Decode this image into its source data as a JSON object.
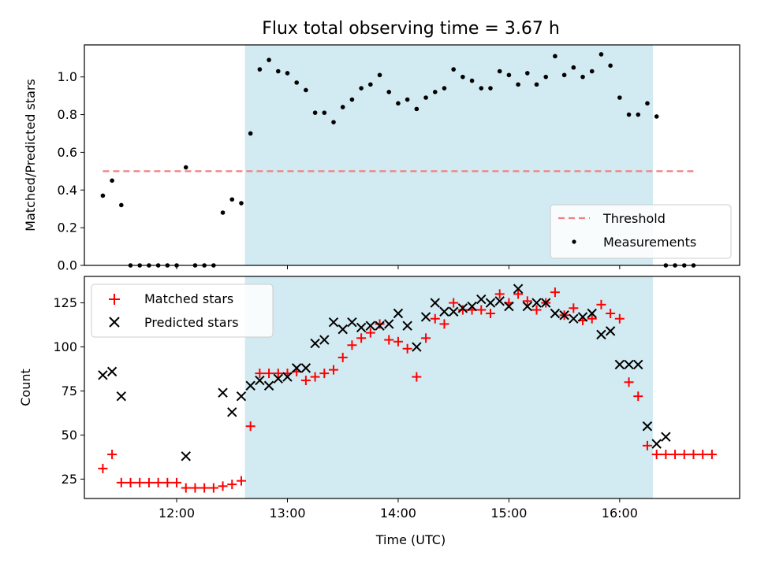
{
  "chart_data": [
    {
      "type": "scatter",
      "title": "Flux total observing time = 3.67 h",
      "xlabel": "",
      "ylabel": "Matched/Predicted stars",
      "ylim": [
        0,
        1.17
      ],
      "yticks": [
        "0.0",
        "0.2",
        "0.4",
        "0.6",
        "0.8",
        "1.0"
      ],
      "x_range": [
        "11:10",
        "17:05"
      ],
      "observing_window": [
        "12:37",
        "16:18"
      ],
      "window_color": "#d2eaf1",
      "legend": "lower right",
      "threshold": {
        "name": "Threshold",
        "value": 0.5,
        "x": [
          "11:20",
          "16:40"
        ],
        "color": "#f08080",
        "style": "dashed"
      },
      "series": [
        {
          "name": "Measurements",
          "color": "#000000",
          "marker": "dot",
          "points": [
            [
              "11:20",
              0.37
            ],
            [
              "11:25",
              0.45
            ],
            [
              "11:30",
              0.32
            ],
            [
              "11:35",
              0.0
            ],
            [
              "11:40",
              0.0
            ],
            [
              "11:45",
              0.0
            ],
            [
              "11:50",
              0.0
            ],
            [
              "11:55",
              0.0
            ],
            [
              "12:00",
              0.0
            ],
            [
              "12:05",
              0.52
            ],
            [
              "12:10",
              0.0
            ],
            [
              "12:15",
              0.0
            ],
            [
              "12:20",
              0.0
            ],
            [
              "12:25",
              0.28
            ],
            [
              "12:30",
              0.35
            ],
            [
              "12:35",
              0.33
            ],
            [
              "12:40",
              0.7
            ],
            [
              "12:45",
              1.04
            ],
            [
              "12:50",
              1.09
            ],
            [
              "12:55",
              1.03
            ],
            [
              "13:00",
              1.02
            ],
            [
              "13:05",
              0.97
            ],
            [
              "13:10",
              0.93
            ],
            [
              "13:15",
              0.81
            ],
            [
              "13:20",
              0.81
            ],
            [
              "13:25",
              0.76
            ],
            [
              "13:30",
              0.84
            ],
            [
              "13:35",
              0.88
            ],
            [
              "13:40",
              0.94
            ],
            [
              "13:45",
              0.96
            ],
            [
              "13:50",
              1.01
            ],
            [
              "13:55",
              0.92
            ],
            [
              "14:00",
              0.86
            ],
            [
              "14:05",
              0.88
            ],
            [
              "14:10",
              0.83
            ],
            [
              "14:15",
              0.89
            ],
            [
              "14:20",
              0.92
            ],
            [
              "14:25",
              0.94
            ],
            [
              "14:30",
              1.04
            ],
            [
              "14:35",
              1.0
            ],
            [
              "14:40",
              0.98
            ],
            [
              "14:45",
              0.94
            ],
            [
              "14:50",
              0.94
            ],
            [
              "14:55",
              1.03
            ],
            [
              "15:00",
              1.01
            ],
            [
              "15:05",
              0.96
            ],
            [
              "15:10",
              1.02
            ],
            [
              "15:15",
              0.96
            ],
            [
              "15:20",
              1.0
            ],
            [
              "15:25",
              1.11
            ],
            [
              "15:30",
              1.01
            ],
            [
              "15:35",
              1.05
            ],
            [
              "15:40",
              1.0
            ],
            [
              "15:45",
              1.03
            ],
            [
              "15:50",
              1.12
            ],
            [
              "15:55",
              1.06
            ],
            [
              "16:00",
              0.89
            ],
            [
              "16:05",
              0.8
            ],
            [
              "16:10",
              0.8
            ],
            [
              "16:15",
              0.86
            ],
            [
              "16:20",
              0.79
            ],
            [
              "16:25",
              0.0
            ],
            [
              "16:30",
              0.0
            ],
            [
              "16:35",
              0.0
            ],
            [
              "16:40",
              0.0
            ]
          ]
        }
      ]
    },
    {
      "type": "scatter",
      "title": "",
      "xlabel": "Time (UTC)",
      "ylabel": "Count",
      "ylim": [
        14,
        140
      ],
      "yticks": [
        "25",
        "50",
        "75",
        "100",
        "125"
      ],
      "xticks": [
        "12:00",
        "13:00",
        "14:00",
        "15:00",
        "16:00"
      ],
      "x_range": [
        "11:10",
        "17:05"
      ],
      "observing_window": [
        "12:37",
        "16:18"
      ],
      "window_color": "#d2eaf1",
      "legend": "upper left",
      "series": [
        {
          "name": "Matched stars",
          "color": "#ff0000",
          "marker": "plus",
          "points": [
            [
              "11:20",
              31
            ],
            [
              "11:25",
              39
            ],
            [
              "11:30",
              23
            ],
            [
              "11:35",
              23
            ],
            [
              "11:40",
              23
            ],
            [
              "11:45",
              23
            ],
            [
              "11:50",
              23
            ],
            [
              "11:55",
              23
            ],
            [
              "12:00",
              23
            ],
            [
              "12:05",
              20
            ],
            [
              "12:10",
              20
            ],
            [
              "12:15",
              20
            ],
            [
              "12:20",
              20
            ],
            [
              "12:25",
              21
            ],
            [
              "12:30",
              22
            ],
            [
              "12:35",
              24
            ],
            [
              "12:40",
              55
            ],
            [
              "12:45",
              85
            ],
            [
              "12:50",
              85
            ],
            [
              "12:55",
              85
            ],
            [
              "13:00",
              85
            ],
            [
              "13:05",
              86
            ],
            [
              "13:10",
              81
            ],
            [
              "13:15",
              83
            ],
            [
              "13:20",
              85
            ],
            [
              "13:25",
              87
            ],
            [
              "13:30",
              94
            ],
            [
              "13:35",
              101
            ],
            [
              "13:40",
              105
            ],
            [
              "13:45",
              108
            ],
            [
              "13:50",
              113
            ],
            [
              "13:55",
              104
            ],
            [
              "14:00",
              103
            ],
            [
              "14:05",
              99
            ],
            [
              "14:10",
              83
            ],
            [
              "14:15",
              105
            ],
            [
              "14:20",
              116
            ],
            [
              "14:25",
              113
            ],
            [
              "14:30",
              125
            ],
            [
              "14:35",
              121
            ],
            [
              "14:40",
              121
            ],
            [
              "14:45",
              121
            ],
            [
              "14:50",
              119
            ],
            [
              "14:55",
              130
            ],
            [
              "15:00",
              125
            ],
            [
              "15:05",
              130
            ],
            [
              "15:10",
              126
            ],
            [
              "15:15",
              121
            ],
            [
              "15:20",
              125
            ],
            [
              "15:25",
              131
            ],
            [
              "15:30",
              118
            ],
            [
              "15:35",
              122
            ],
            [
              "15:40",
              115
            ],
            [
              "15:45",
              116
            ],
            [
              "15:50",
              124
            ],
            [
              "15:55",
              119
            ],
            [
              "16:00",
              116
            ],
            [
              "16:05",
              80
            ],
            [
              "16:10",
              72
            ],
            [
              "16:15",
              44
            ],
            [
              "16:20",
              39
            ],
            [
              "16:25",
              39
            ],
            [
              "16:30",
              39
            ],
            [
              "16:35",
              39
            ],
            [
              "16:40",
              39
            ],
            [
              "16:45",
              39
            ],
            [
              "16:50",
              39
            ]
          ]
        },
        {
          "name": "Predicted stars",
          "color": "#000000",
          "marker": "x",
          "points": [
            [
              "11:20",
              84
            ],
            [
              "11:25",
              86
            ],
            [
              "11:30",
              72
            ],
            [
              "12:05",
              38
            ],
            [
              "12:25",
              74
            ],
            [
              "12:30",
              63
            ],
            [
              "12:35",
              72
            ],
            [
              "12:40",
              78
            ],
            [
              "12:45",
              81
            ],
            [
              "12:50",
              78
            ],
            [
              "12:55",
              82
            ],
            [
              "13:00",
              83
            ],
            [
              "13:05",
              88
            ],
            [
              "13:10",
              88
            ],
            [
              "13:15",
              102
            ],
            [
              "13:20",
              104
            ],
            [
              "13:25",
              114
            ],
            [
              "13:30",
              110
            ],
            [
              "13:35",
              114
            ],
            [
              "13:40",
              111
            ],
            [
              "13:45",
              112
            ],
            [
              "13:50",
              112
            ],
            [
              "13:55",
              113
            ],
            [
              "14:00",
              119
            ],
            [
              "14:05",
              112
            ],
            [
              "14:10",
              100
            ],
            [
              "14:15",
              117
            ],
            [
              "14:20",
              125
            ],
            [
              "14:25",
              120
            ],
            [
              "14:30",
              120
            ],
            [
              "14:35",
              122
            ],
            [
              "14:40",
              123
            ],
            [
              "14:45",
              127
            ],
            [
              "14:50",
              125
            ],
            [
              "14:55",
              126
            ],
            [
              "15:00",
              123
            ],
            [
              "15:05",
              133
            ],
            [
              "15:10",
              123
            ],
            [
              "15:15",
              125
            ],
            [
              "15:20",
              125
            ],
            [
              "15:25",
              119
            ],
            [
              "15:30",
              118
            ],
            [
              "15:35",
              116
            ],
            [
              "15:40",
              117
            ],
            [
              "15:45",
              119
            ],
            [
              "15:50",
              107
            ],
            [
              "15:55",
              109
            ],
            [
              "16:00",
              90
            ],
            [
              "16:05",
              90
            ],
            [
              "16:10",
              90
            ],
            [
              "16:15",
              55
            ],
            [
              "16:20",
              45
            ],
            [
              "16:25",
              49
            ]
          ]
        }
      ]
    }
  ]
}
